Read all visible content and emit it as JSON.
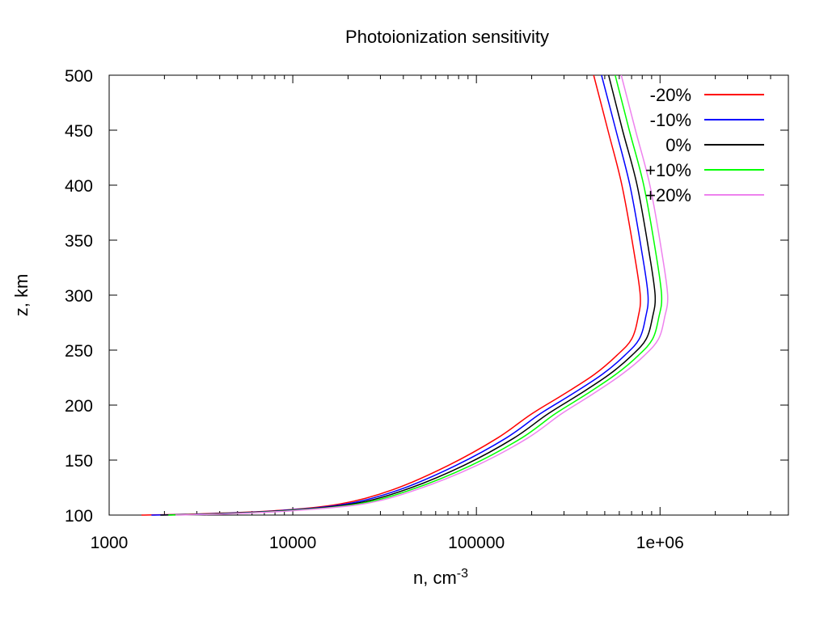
{
  "chart_data": {
    "type": "line",
    "title": "Photoionization sensitivity",
    "xlabel": "n, cm",
    "xlabel_superscript": "-3",
    "ylabel": "z, km",
    "xscale": "log",
    "xlim": [
      1000,
      5000000
    ],
    "ylim": [
      100,
      500
    ],
    "x_ticks": [
      {
        "value": 1000,
        "label": "1000"
      },
      {
        "value": 10000,
        "label": "10000"
      },
      {
        "value": 100000,
        "label": "100000"
      },
      {
        "value": 1000000,
        "label": "1e+06"
      }
    ],
    "y_ticks": [
      {
        "value": 100,
        "label": "100"
      },
      {
        "value": 150,
        "label": "150"
      },
      {
        "value": 200,
        "label": "200"
      },
      {
        "value": 250,
        "label": "250"
      },
      {
        "value": 300,
        "label": "300"
      },
      {
        "value": 350,
        "label": "350"
      },
      {
        "value": 400,
        "label": "400"
      },
      {
        "value": 450,
        "label": "450"
      },
      {
        "value": 500,
        "label": "500"
      }
    ],
    "grid": false,
    "legend_position": "top-right",
    "series": [
      {
        "name": "-20%",
        "color": "#ff0000",
        "points": [
          [
            1500,
            100
          ],
          [
            3000,
            101
          ],
          [
            8000,
            104
          ],
          [
            18000,
            110
          ],
          [
            35000,
            123
          ],
          [
            70000,
            145
          ],
          [
            130000,
            170
          ],
          [
            200000,
            192
          ],
          [
            300000,
            210
          ],
          [
            440000,
            228
          ],
          [
            580000,
            245
          ],
          [
            700000,
            260
          ],
          [
            760000,
            280
          ],
          [
            780000,
            300
          ],
          [
            720000,
            340
          ],
          [
            620000,
            400
          ],
          [
            520000,
            450
          ],
          [
            435000,
            500
          ]
        ]
      },
      {
        "name": "-10%",
        "color": "#0000ff",
        "points": [
          [
            1700,
            100
          ],
          [
            3400,
            101
          ],
          [
            8500,
            104
          ],
          [
            19500,
            110
          ],
          [
            38000,
            123
          ],
          [
            77000,
            145
          ],
          [
            145000,
            170
          ],
          [
            222000,
            192
          ],
          [
            332000,
            210
          ],
          [
            485000,
            228
          ],
          [
            640000,
            245
          ],
          [
            770000,
            260
          ],
          [
            835000,
            280
          ],
          [
            860000,
            300
          ],
          [
            795000,
            340
          ],
          [
            685000,
            400
          ],
          [
            575000,
            450
          ],
          [
            480000,
            500
          ]
        ]
      },
      {
        "name": "0%",
        "color": "#000000",
        "points": [
          [
            1900,
            100
          ],
          [
            3700,
            101
          ],
          [
            9000,
            104
          ],
          [
            21000,
            110
          ],
          [
            41000,
            123
          ],
          [
            85000,
            145
          ],
          [
            160000,
            170
          ],
          [
            245000,
            192
          ],
          [
            365000,
            210
          ],
          [
            530000,
            228
          ],
          [
            700000,
            245
          ],
          [
            840000,
            260
          ],
          [
            910000,
            280
          ],
          [
            940000,
            300
          ],
          [
            870000,
            340
          ],
          [
            750000,
            400
          ],
          [
            625000,
            450
          ],
          [
            525000,
            500
          ]
        ]
      },
      {
        "name": "+10%",
        "color": "#00ff00",
        "points": [
          [
            2100,
            100
          ],
          [
            4000,
            101
          ],
          [
            9500,
            104
          ],
          [
            22500,
            110
          ],
          [
            44000,
            123
          ],
          [
            93000,
            145
          ],
          [
            176000,
            170
          ],
          [
            268000,
            192
          ],
          [
            398000,
            210
          ],
          [
            575000,
            228
          ],
          [
            760000,
            245
          ],
          [
            910000,
            260
          ],
          [
            985000,
            280
          ],
          [
            1020000,
            300
          ],
          [
            945000,
            340
          ],
          [
            815000,
            400
          ],
          [
            680000,
            450
          ],
          [
            570000,
            500
          ]
        ]
      },
      {
        "name": "+20%",
        "color": "#ee82ee",
        "points": [
          [
            2300,
            100
          ],
          [
            4300,
            101
          ],
          [
            10000,
            104
          ],
          [
            24000,
            110
          ],
          [
            47000,
            123
          ],
          [
            100000,
            145
          ],
          [
            190000,
            170
          ],
          [
            290000,
            192
          ],
          [
            430000,
            210
          ],
          [
            620000,
            228
          ],
          [
            820000,
            245
          ],
          [
            980000,
            260
          ],
          [
            1060000,
            280
          ],
          [
            1100000,
            300
          ],
          [
            1020000,
            340
          ],
          [
            880000,
            400
          ],
          [
            735000,
            450
          ],
          [
            615000,
            500
          ]
        ]
      }
    ]
  }
}
